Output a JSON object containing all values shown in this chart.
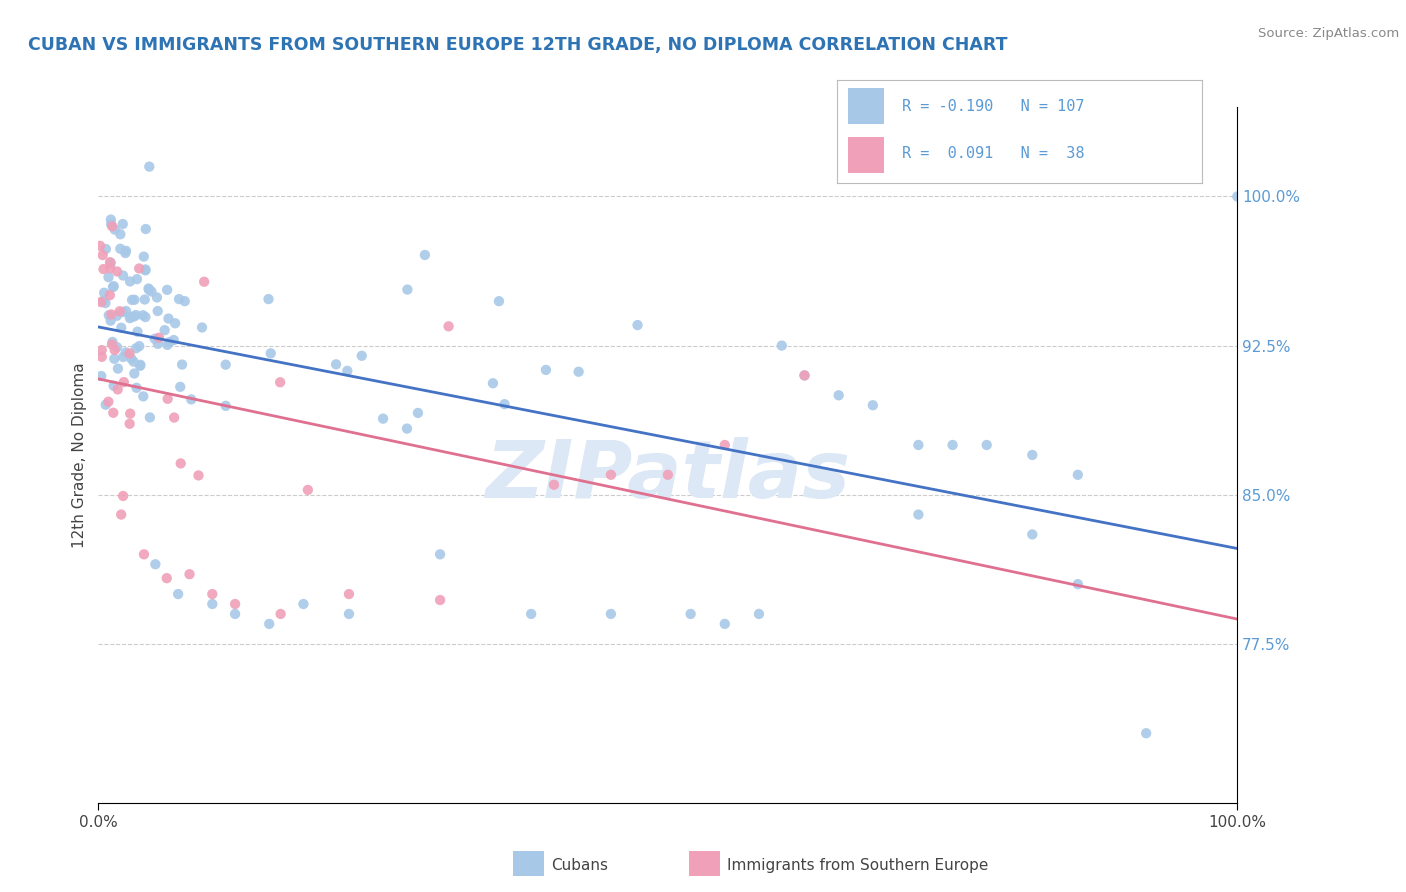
{
  "title": "CUBAN VS IMMIGRANTS FROM SOUTHERN EUROPE 12TH GRADE, NO DIPLOMA CORRELATION CHART",
  "source": "Source: ZipAtlas.com",
  "ylabel": "12th Grade, No Diploma",
  "x_min": 0.0,
  "x_max": 1.0,
  "y_min": 0.695,
  "y_max": 1.045,
  "y_ticks": [
    0.775,
    0.85,
    0.925,
    1.0
  ],
  "y_tick_labels": [
    "77.5%",
    "85.0%",
    "92.5%",
    "100.0%"
  ],
  "x_ticks": [
    0.0,
    1.0
  ],
  "x_tick_labels": [
    "0.0%",
    "100.0%"
  ],
  "cubans_color": "#a8c8e8",
  "southern_europe_color": "#f0a0b8",
  "trend_blue": "#4472c4",
  "trend_pink": "#e07090",
  "watermark_color": "#dce8f5",
  "background_color": "#ffffff",
  "tick_color": "#5b9bd5",
  "title_color": "#2e74b5",
  "source_color": "#888888",
  "legend_text_color": "#5b9bd5"
}
